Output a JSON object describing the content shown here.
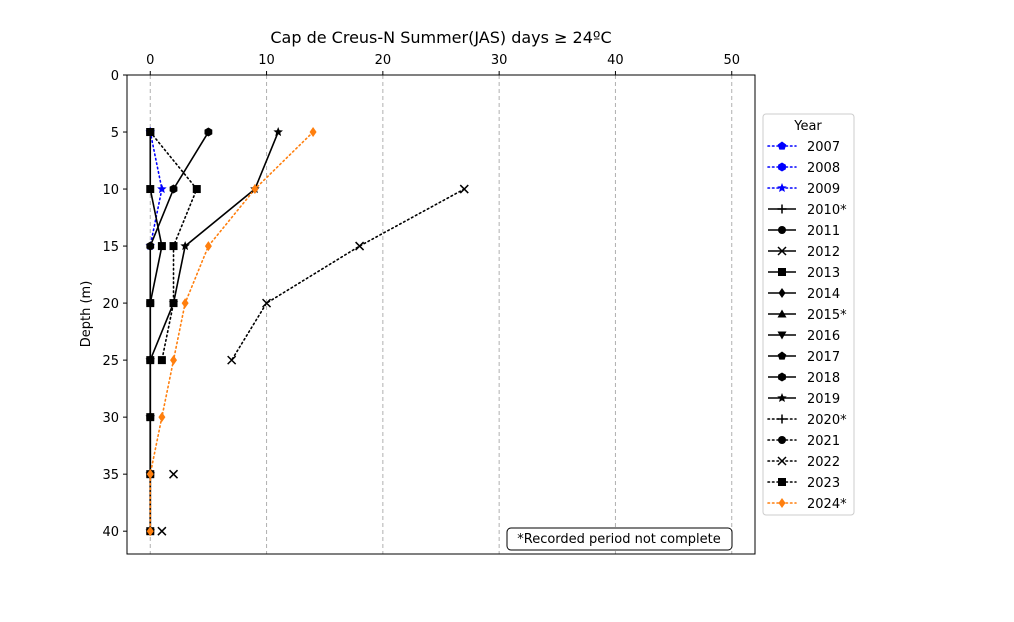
{
  "chart_data": {
    "type": "line",
    "title": "Cap de Creus-N Summer(JAS) days ≥ 24ºC",
    "xlabel": "",
    "ylabel": "Depth (m)",
    "xlim": [
      -2,
      52
    ],
    "ylim": [
      42,
      0
    ],
    "x_ticks": [
      0,
      10,
      20,
      30,
      40,
      50
    ],
    "y_ticks": [
      0,
      5,
      10,
      15,
      20,
      25,
      30,
      35,
      40
    ],
    "x_axis_position": "top",
    "y_inverted": true,
    "grid": "vertical dashed",
    "legend": {
      "title": "Year",
      "placement": "right outside"
    },
    "annotation": "*Recorded period not complete",
    "series": [
      {
        "name": "2007",
        "color": "#0000ff",
        "style": "dotted",
        "marker": "pentagon",
        "points": [
          [
            0,
            5
          ]
        ]
      },
      {
        "name": "2008",
        "color": "#0000ff",
        "style": "dotted",
        "marker": "hexagon",
        "points": [
          [
            0,
            5
          ]
        ]
      },
      {
        "name": "2009",
        "color": "#0000ff",
        "style": "dotted",
        "marker": "star",
        "points": [
          [
            0,
            5
          ],
          [
            1,
            10
          ],
          [
            0,
            15
          ]
        ]
      },
      {
        "name": "2010*",
        "color": "#000000",
        "style": "solid",
        "marker": "plus",
        "points": []
      },
      {
        "name": "2011",
        "color": "#000000",
        "style": "solid",
        "marker": "circle",
        "points": []
      },
      {
        "name": "2012",
        "color": "#000000",
        "style": "solid",
        "marker": "x",
        "points": []
      },
      {
        "name": "2013",
        "color": "#000000",
        "style": "solid",
        "marker": "square",
        "points": [
          [
            0,
            5
          ],
          [
            0,
            10
          ],
          [
            1,
            15
          ],
          [
            0,
            20
          ],
          [
            0,
            25
          ],
          [
            0,
            30
          ],
          [
            0,
            35
          ],
          [
            0,
            40
          ]
        ]
      },
      {
        "name": "2014",
        "color": "#000000",
        "style": "solid",
        "marker": "diamond",
        "points": []
      },
      {
        "name": "2015*",
        "color": "#000000",
        "style": "solid",
        "marker": "triangle-up",
        "points": []
      },
      {
        "name": "2016",
        "color": "#000000",
        "style": "solid",
        "marker": "triangle-down",
        "points": []
      },
      {
        "name": "2017",
        "color": "#000000",
        "style": "solid",
        "marker": "pentagon",
        "points": []
      },
      {
        "name": "2018",
        "color": "#000000",
        "style": "solid",
        "marker": "hexagon",
        "points": [
          [
            5,
            5
          ],
          [
            2,
            10
          ],
          [
            0,
            15
          ],
          [
            0,
            20
          ],
          [
            0,
            25
          ],
          [
            0,
            30
          ],
          [
            0,
            35
          ],
          [
            0,
            40
          ]
        ]
      },
      {
        "name": "2019",
        "color": "#000000",
        "style": "solid",
        "marker": "star",
        "points": [
          [
            11,
            5
          ],
          [
            9,
            10
          ],
          [
            3,
            15
          ],
          [
            2,
            20
          ],
          [
            0,
            25
          ],
          [
            0,
            30
          ],
          [
            0,
            35
          ],
          [
            0,
            40
          ]
        ]
      },
      {
        "name": "2020*",
        "color": "#000000",
        "style": "dotted",
        "marker": "plus",
        "points": []
      },
      {
        "name": "2021",
        "color": "#000000",
        "style": "dotted",
        "marker": "circle",
        "points": []
      },
      {
        "name": "2022",
        "color": "#000000",
        "style": "dotted",
        "marker": "x",
        "points": [
          [
            27,
            10
          ],
          [
            18,
            15
          ],
          [
            10,
            20
          ],
          [
            7,
            25
          ]
        ]
      },
      {
        "name": "2023",
        "color": "#000000",
        "style": "dotted",
        "marker": "square",
        "points": [
          [
            0,
            5
          ],
          [
            4,
            10
          ],
          [
            2,
            15
          ],
          [
            2,
            20
          ],
          [
            1,
            25
          ]
        ]
      },
      {
        "name": "2024*",
        "color": "#ff7f0e",
        "style": "dotted",
        "marker": "diamond",
        "points": [
          [
            14,
            5
          ],
          [
            9,
            10
          ],
          [
            5,
            15
          ],
          [
            3,
            20
          ],
          [
            2,
            25
          ],
          [
            1,
            30
          ],
          [
            0,
            35
          ],
          [
            0,
            40
          ]
        ]
      }
    ],
    "extra_markers": [
      {
        "marker": "x",
        "color": "#000000",
        "points": [
          [
            2,
            35
          ],
          [
            1,
            40
          ]
        ]
      }
    ]
  }
}
